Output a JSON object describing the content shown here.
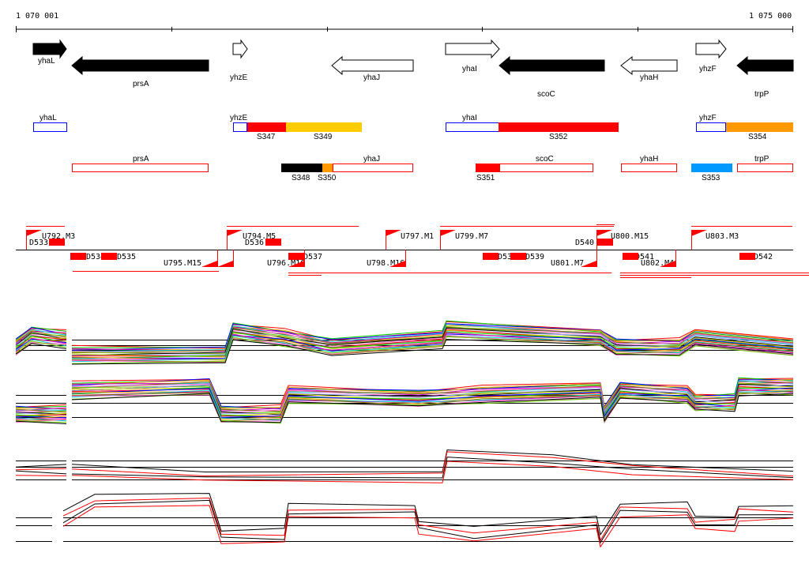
{
  "ruler": {
    "start_label": "1 070 001",
    "end_label": "1 075 000"
  },
  "genes": [
    {
      "name": "yhaL",
      "strand": "+",
      "fill": "black"
    },
    {
      "name": "prsA",
      "strand": "-",
      "fill": "black"
    },
    {
      "name": "yhzE",
      "strand": "+",
      "fill": "open"
    },
    {
      "name": "yhaJ",
      "strand": "-",
      "fill": "open"
    },
    {
      "name": "yhaI",
      "strand": "+",
      "fill": "open"
    },
    {
      "name": "scoC",
      "strand": "-",
      "fill": "black"
    },
    {
      "name": "yhaH",
      "strand": "-",
      "fill": "open"
    },
    {
      "name": "yhzF",
      "strand": "+",
      "fill": "open"
    },
    {
      "name": "trpP",
      "strand": "-",
      "fill": "black"
    }
  ],
  "operons_plus": {
    "genes": [
      "yhaL",
      "yhzE",
      "yhaI",
      "yhzF"
    ],
    "segments": [
      "S347",
      "S349",
      "S352",
      "S354"
    ]
  },
  "operons_minus": {
    "genes": [
      "prsA",
      "yhaJ",
      "scoC",
      "yhaH",
      "trpP"
    ],
    "segments": [
      "S348",
      "S350",
      "S351",
      "S353"
    ]
  },
  "transcription": {
    "up": [
      "U792.M3",
      "U794.M5",
      "U797.M1",
      "U799.M7",
      "U800.M15",
      "U803.M3"
    ],
    "down_up": [
      "D533",
      "D536",
      "D540"
    ],
    "down": [
      "D534",
      "D535",
      "D537",
      "D538",
      "D539",
      "D541",
      "D542"
    ],
    "minus_up": [
      "U795.M15",
      "U796.M16",
      "U798.M16",
      "U801.M7",
      "U802.M4"
    ]
  },
  "colors": {
    "red": "#ff0000",
    "blue": "#0000ff",
    "yellow": "#ffcc00",
    "orange": "#ff9900",
    "sky": "#0099ff"
  }
}
